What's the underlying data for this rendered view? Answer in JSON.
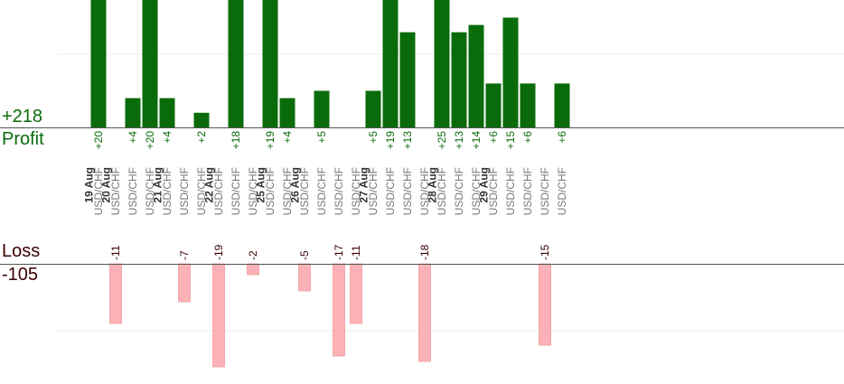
{
  "summary": {
    "profit_total": "+218",
    "profit_label": "Profit",
    "loss_label": "Loss",
    "loss_total": "-105"
  },
  "colors": {
    "profit_bar": "#0a6b0a",
    "profit_text": "#0a6a0a",
    "loss_bar": "#fbb2b6",
    "loss_text": "#3a0000",
    "axis": "#555555",
    "grid": "#eeeeee",
    "date_text": "#333333",
    "pair_text": "#777777"
  },
  "chart_data": {
    "type": "bar",
    "title": "",
    "xlabel": "",
    "ylabel": "",
    "grid": true,
    "profit_ylim": [
      0,
      26
    ],
    "loss_ylim": [
      0,
      20
    ],
    "dates": [
      {
        "label": "19 Aug",
        "after_slot": -1
      },
      {
        "label": "20 Aug",
        "after_slot": 0
      },
      {
        "label": "21 Aug",
        "after_slot": 3
      },
      {
        "label": "22 Aug",
        "after_slot": 6
      },
      {
        "label": "25 Aug",
        "after_slot": 9
      },
      {
        "label": "26 Aug",
        "after_slot": 11
      },
      {
        "label": "27 Aug",
        "after_slot": 15
      },
      {
        "label": "28 Aug",
        "after_slot": 19
      },
      {
        "label": "29 Aug",
        "after_slot": 22
      }
    ],
    "trades": [
      {
        "pair": "USD/CHF",
        "value": 20
      },
      {
        "pair": "USD/CHF",
        "value": -11
      },
      {
        "pair": "USD/CHF",
        "value": 4
      },
      {
        "pair": "USD/CHF",
        "value": 20
      },
      {
        "pair": "USD/CHF",
        "value": 4
      },
      {
        "pair": "USD/CHF",
        "value": -7
      },
      {
        "pair": "USD/CHF",
        "value": 2
      },
      {
        "pair": "USD/CHF",
        "value": -19
      },
      {
        "pair": "USD/CHF",
        "value": 18
      },
      {
        "pair": "USD/CHF",
        "value": -2
      },
      {
        "pair": "USD/CHF",
        "value": 19
      },
      {
        "pair": "USD/CHF",
        "value": 4
      },
      {
        "pair": "USD/CHF",
        "value": -5
      },
      {
        "pair": "USD/CHF",
        "value": 5
      },
      {
        "pair": "USD/CHF",
        "value": -17
      },
      {
        "pair": "USD/CHF",
        "value": -11
      },
      {
        "pair": "USD/CHF",
        "value": 5
      },
      {
        "pair": "USD/CHF",
        "value": 19
      },
      {
        "pair": "USD/CHF",
        "value": 13
      },
      {
        "pair": "USD/CHF",
        "value": -18
      },
      {
        "pair": "USD/CHF",
        "value": 25
      },
      {
        "pair": "USD/CHF",
        "value": 13
      },
      {
        "pair": "USD/CHF",
        "value": 14
      },
      {
        "pair": "USD/CHF",
        "value": 6
      },
      {
        "pair": "USD/CHF",
        "value": 15
      },
      {
        "pair": "USD/CHF",
        "value": 6
      },
      {
        "pair": "USD/CHF",
        "value": -15
      },
      {
        "pair": "USD/CHF",
        "value": 6
      }
    ]
  }
}
